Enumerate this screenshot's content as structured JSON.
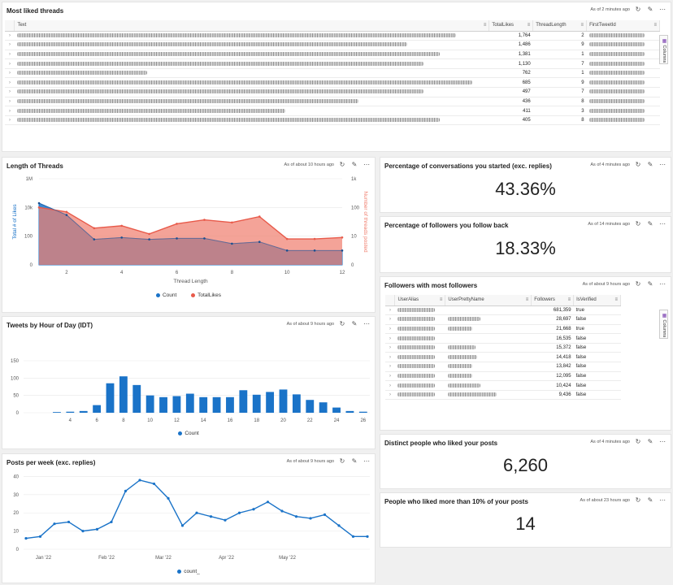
{
  "colors": {
    "blue": "#1a73c8",
    "salmon": "#f08070",
    "grid": "#e8e8e8"
  },
  "tiles": {
    "threads": {
      "title": "Most liked threads",
      "asof": "As of 2 minutes ago",
      "columns": [
        "Text",
        "TotalLikes",
        "ThreadLength",
        "FirstTweetId"
      ],
      "columns_panel": "Columns",
      "rows": [
        {
          "likes": "1,764",
          "len": "2"
        },
        {
          "likes": "1,486",
          "len": "9"
        },
        {
          "likes": "1,381",
          "len": "1"
        },
        {
          "likes": "1,130",
          "len": "7"
        },
        {
          "likes": "762",
          "len": "1"
        },
        {
          "likes": "685",
          "len": "9"
        },
        {
          "likes": "497",
          "len": "7"
        },
        {
          "likes": "436",
          "len": "8"
        },
        {
          "likes": "411",
          "len": "3"
        },
        {
          "likes": "405",
          "len": "8"
        }
      ]
    },
    "length": {
      "title": "Length of Threads",
      "asof": "As of about 10 hours ago"
    },
    "pct_started": {
      "title": "Percentage of conversations you started (exc. replies)",
      "asof": "As of 4 minutes ago",
      "value": "43.36%"
    },
    "pct_followback": {
      "title": "Percentage of followers you follow back",
      "asof": "As of 14 minutes ago",
      "value": "18.33%"
    },
    "followers": {
      "title": "Followers with most followers",
      "asof": "As of about 9 hours ago",
      "columns": [
        "UserAlias",
        "UserPrettyName",
        "Followers",
        "IsVerified"
      ],
      "columns_panel": "Columns",
      "rows": [
        {
          "followers": "681,359",
          "verified": "true"
        },
        {
          "followers": "28,697",
          "verified": "false"
        },
        {
          "followers": "21,668",
          "verified": "true"
        },
        {
          "followers": "16,535",
          "verified": "false"
        },
        {
          "followers": "15,372",
          "verified": "false"
        },
        {
          "followers": "14,418",
          "verified": "false"
        },
        {
          "followers": "13,842",
          "verified": "false"
        },
        {
          "followers": "12,095",
          "verified": "false"
        },
        {
          "followers": "10,424",
          "verified": "false"
        },
        {
          "followers": "9,436",
          "verified": "false"
        }
      ]
    },
    "tweets_hour": {
      "title": "Tweets by Hour of Day (IDT)",
      "asof": "As of about 9 hours ago"
    },
    "distinct": {
      "title": "Distinct people who liked your posts",
      "asof": "As of 4 minutes ago",
      "value": "6,260"
    },
    "posts_week": {
      "title": "Posts per week (exc. replies)",
      "asof": "As of about 9 hours ago"
    },
    "liked10": {
      "title": "People who liked more than 10% of your posts",
      "asof": "As of about 23 hours ago",
      "value": "14"
    }
  },
  "chart_data": [
    {
      "type": "area",
      "xlabel": "Thread Length",
      "x": [
        1,
        2,
        3,
        4,
        5,
        6,
        7,
        8,
        9,
        10,
        11,
        12
      ],
      "xticks": [
        2,
        4,
        6,
        8,
        10,
        12
      ],
      "y_left": {
        "label": "Total # of Likes",
        "ticks": [
          "0",
          "100",
          "10k",
          "1M"
        ]
      },
      "y_right": {
        "label": "Number of threads posted",
        "ticks": [
          "0",
          "10",
          "100",
          "1k"
        ]
      },
      "series": [
        {
          "name": "Count",
          "axis": "right",
          "values": [
            100,
            70,
            19,
            23,
            12,
            27,
            37,
            30,
            48,
            8,
            8,
            9
          ]
        },
        {
          "name": "TotalLikes",
          "axis": "left",
          "values": [
            20000,
            3000,
            60,
            80,
            60,
            70,
            70,
            30,
            40,
            10,
            10,
            10
          ]
        }
      ],
      "legend": "bottom"
    },
    {
      "type": "bar",
      "x": [
        1,
        2,
        3,
        4,
        5,
        6,
        7,
        8,
        9,
        10,
        11,
        12,
        13,
        14,
        15,
        16,
        17,
        18,
        19,
        20,
        21,
        22,
        23,
        24,
        25,
        26
      ],
      "xticks": [
        4,
        6,
        8,
        10,
        12,
        14,
        16,
        18,
        20,
        22,
        24,
        26
      ],
      "yticks": [
        0,
        50,
        100,
        150
      ],
      "ylim": [
        0,
        150
      ],
      "series": [
        {
          "name": "Count",
          "values": [
            0,
            0,
            2,
            3,
            5,
            22,
            85,
            105,
            80,
            50,
            45,
            48,
            55,
            45,
            45,
            45,
            65,
            52,
            60,
            67,
            53,
            37,
            30,
            15,
            5,
            3
          ]
        }
      ],
      "legend": "bottom"
    },
    {
      "type": "line",
      "x": [
        "2022-01-02",
        "2022-01-09",
        "2022-01-16",
        "2022-01-23",
        "2022-01-30",
        "2022-02-06",
        "2022-02-13",
        "2022-02-20",
        "2022-02-27",
        "2022-03-06",
        "2022-03-13",
        "2022-03-20",
        "2022-03-27",
        "2022-04-03",
        "2022-04-10",
        "2022-04-17",
        "2022-04-24",
        "2022-05-01",
        "2022-05-08",
        "2022-05-15",
        "2022-05-22",
        "2022-05-29",
        "2022-06-05",
        "2022-06-12",
        "2022-06-19"
      ],
      "xtick_labels": [
        "Jan '22",
        "Feb '22",
        "Mar '22",
        "Apr '22",
        "May '22"
      ],
      "yticks": [
        0,
        10,
        20,
        30,
        40
      ],
      "ylim": [
        0,
        42
      ],
      "series": [
        {
          "name": "count_",
          "values": [
            6,
            7,
            14,
            15,
            10,
            11,
            15,
            32,
            38,
            36,
            28,
            13,
            20,
            18,
            16,
            20,
            22,
            26,
            21,
            18,
            17,
            19,
            13,
            7,
            7
          ]
        }
      ],
      "legend": "bottom"
    }
  ]
}
